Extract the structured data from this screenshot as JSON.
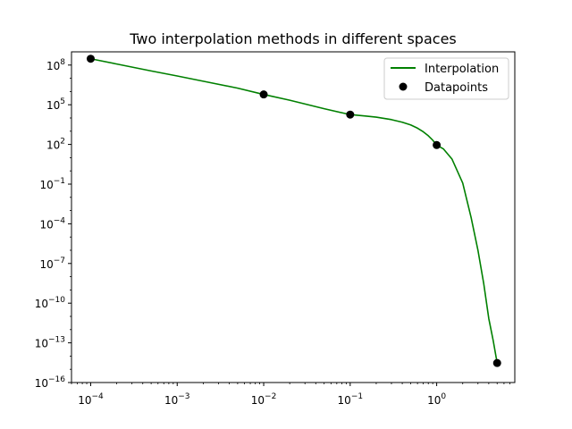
{
  "chart_data": {
    "type": "line",
    "title": "Two interpolation methods in different spaces",
    "xscale": "log",
    "yscale": "log",
    "xlim": [
      6e-05,
      8
    ],
    "ylim": [
      1e-16,
      1000000000.0
    ],
    "x_ticks": [
      {
        "value": 0.0001,
        "base": "10",
        "exp": "−4"
      },
      {
        "value": 0.001,
        "base": "10",
        "exp": "−3"
      },
      {
        "value": 0.01,
        "base": "10",
        "exp": "−2"
      },
      {
        "value": 0.1,
        "base": "10",
        "exp": "−1"
      },
      {
        "value": 1,
        "base": "10",
        "exp": "0"
      }
    ],
    "y_ticks": [
      {
        "value": 100000000.0,
        "base": "10",
        "exp": "8"
      },
      {
        "value": 100000.0,
        "base": "10",
        "exp": "5"
      },
      {
        "value": 100.0,
        "base": "10",
        "exp": "2"
      },
      {
        "value": 0.1,
        "base": "10",
        "exp": "−1"
      },
      {
        "value": 0.0001,
        "base": "10",
        "exp": "−4"
      },
      {
        "value": 1e-07,
        "base": "10",
        "exp": "−7"
      },
      {
        "value": 1e-10,
        "base": "10",
        "exp": "−10"
      },
      {
        "value": 1e-13,
        "base": "10",
        "exp": "−13"
      },
      {
        "value": 1e-16,
        "base": "10",
        "exp": "−16"
      }
    ],
    "series": [
      {
        "name": "Interpolation",
        "kind": "line",
        "color": "#008000",
        "x": [
          0.0001,
          0.0002,
          0.0005,
          0.001,
          0.002,
          0.005,
          0.01,
          0.02,
          0.05,
          0.1,
          0.15,
          0.2,
          0.3,
          0.4,
          0.5,
          0.6,
          0.7,
          0.8,
          0.9,
          1.0,
          1.2,
          1.5,
          2.0,
          2.5,
          3.0,
          3.5,
          4.0,
          4.5,
          5.0
        ],
        "y": [
          300000000.0,
          120000000.0,
          36000000.0,
          15000000.0,
          6000000.0,
          1800000.0,
          600000.0,
          220000.0,
          50000.0,
          18000.0,
          14000.0,
          11500.0,
          7500,
          4800,
          3000,
          1700,
          900,
          450,
          210,
          90,
          45,
          8,
          0.12,
          0.0003,
          1e-06,
          3e-09,
          7e-12,
          1.5e-13,
          3e-15
        ]
      },
      {
        "name": "Datapoints",
        "kind": "scatter",
        "color": "#000000",
        "x": [
          0.0001,
          0.01,
          0.1,
          1.0,
          5.0
        ],
        "y": [
          300000000.0,
          600000.0,
          18000.0,
          90,
          3e-15
        ]
      }
    ],
    "legend": {
      "position": "top-right",
      "entries": [
        {
          "label": "Interpolation",
          "marker": "line",
          "color": "#008000"
        },
        {
          "label": "Datapoints",
          "marker": "dot",
          "color": "#000000"
        }
      ]
    }
  }
}
